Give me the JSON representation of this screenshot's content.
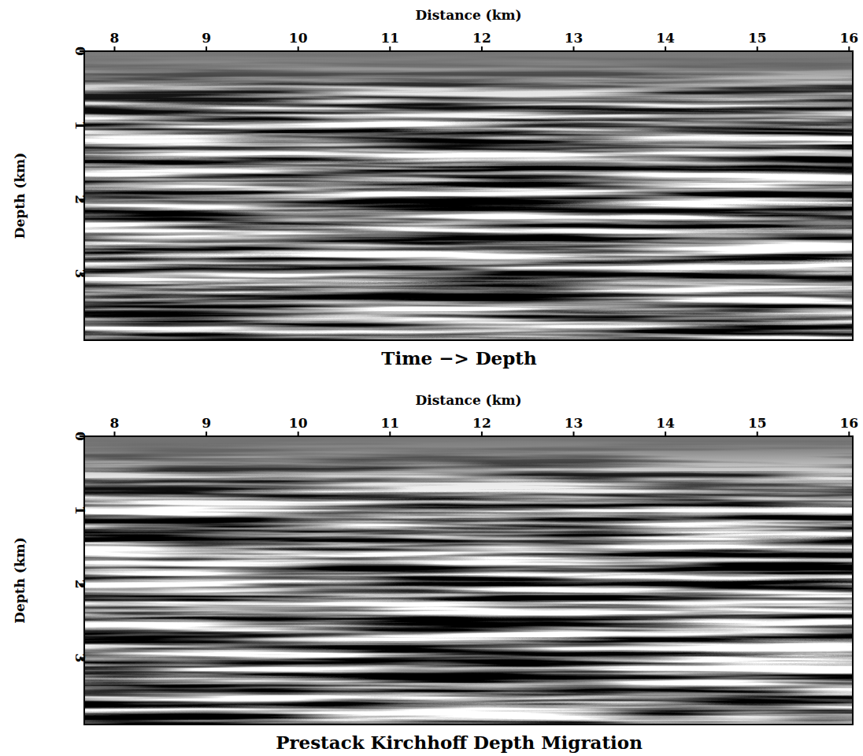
{
  "chart_data": [
    {
      "type": "seismic",
      "title": "Time −> Depth",
      "x_label": "Distance (km)",
      "y_label": "Depth (km)",
      "xlim": [
        7.67,
        16.04
      ],
      "xticks": [
        8,
        9,
        10,
        11,
        12,
        13,
        14,
        15,
        16
      ],
      "ylim": [
        0,
        3.9
      ],
      "yticks": [
        0,
        1,
        2,
        3
      ]
    },
    {
      "type": "seismic",
      "title": "Prestack Kirchhoff Depth Migration",
      "x_label": "Distance (km)",
      "y_label": "Depth (km)",
      "xlim": [
        7.67,
        16.04
      ],
      "xticks": [
        8,
        9,
        10,
        11,
        12,
        13,
        14,
        15,
        16
      ],
      "ylim": [
        0,
        3.9
      ],
      "yticks": [
        0,
        1,
        2,
        3
      ]
    }
  ]
}
